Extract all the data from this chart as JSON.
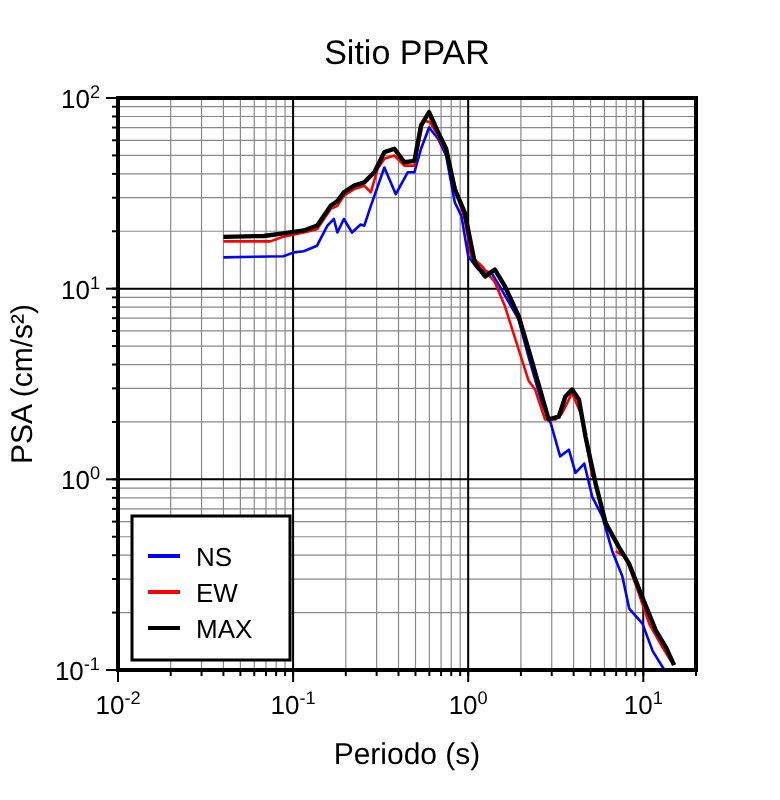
{
  "chart_data": {
    "type": "line",
    "title": "Sitio PPAR",
    "xlabel": "Periodo (s)",
    "ylabel": "PSA (cm/s²)",
    "log": "xy",
    "grid": true,
    "legend": "bottom left",
    "marker": "none",
    "line_style": "solid",
    "xlim": [
      0.01,
      20
    ],
    "ylim": [
      0.1,
      100
    ],
    "xticks": [
      {
        "value": 0.01,
        "label": "10$^{-2}$"
      },
      {
        "value": 0.1,
        "label": "10$^{-1}$"
      },
      {
        "value": 1,
        "label": "10$^{0}$"
      },
      {
        "value": 10,
        "label": "10$^{1}$"
      }
    ],
    "yticks": [
      {
        "value": 0.1,
        "label": "10$^{-1}$"
      },
      {
        "value": 1,
        "label": "10$^{0}$"
      },
      {
        "value": 10,
        "label": "10$^{1}$"
      },
      {
        "value": 100,
        "label": "10$^{2}$"
      }
    ],
    "series": [
      {
        "name": "NS",
        "color": "#0000ff",
        "x": [
          0.04,
          0.088,
          0.101,
          0.115,
          0.137,
          0.157,
          0.171,
          0.179,
          0.195,
          0.217,
          0.243,
          0.255,
          0.278,
          0.332,
          0.386,
          0.452,
          0.493,
          0.538,
          0.598,
          0.673,
          0.748,
          0.838,
          0.914,
          1.0,
          1.14,
          1.36,
          1.55,
          1.94,
          2.21,
          2.64,
          2.96,
          3.35,
          3.76,
          4.1,
          4.6,
          5.11,
          5.83,
          6.65,
          7.59,
          8.31,
          9.89,
          11.3,
          13.2
        ],
        "values": [
          14.6,
          14.8,
          15.5,
          15.7,
          16.8,
          21.4,
          23.2,
          19.7,
          23.2,
          19.7,
          21.7,
          21.4,
          27.2,
          43.2,
          31.3,
          40.8,
          40.8,
          54.2,
          70,
          61.1,
          49.9,
          28.4,
          24.1,
          14.8,
          12.6,
          12.1,
          9.9,
          6.9,
          4.4,
          2.5,
          1.97,
          1.32,
          1.43,
          1.08,
          1.21,
          0.81,
          0.64,
          0.42,
          0.31,
          0.21,
          0.175,
          0.126,
          0.1
        ]
      },
      {
        "name": "EW",
        "color": "#ff0000",
        "x": [
          0.04,
          0.074,
          0.088,
          0.115,
          0.137,
          0.164,
          0.179,
          0.195,
          0.223,
          0.255,
          0.278,
          0.304,
          0.332,
          0.379,
          0.432,
          0.493,
          0.553,
          0.605,
          0.673,
          0.748,
          0.838,
          0.955,
          1.04,
          1.19,
          1.42,
          1.62,
          1.94,
          2.21,
          2.41,
          2.75,
          3.15,
          3.44,
          3.92,
          4.48,
          5.11,
          5.83,
          6.96,
          7.94,
          9.06,
          10.8,
          12.9,
          14.7
        ],
        "values": [
          17.7,
          17.7,
          18.7,
          19.7,
          20.5,
          26.2,
          27.2,
          30.7,
          33.3,
          34.7,
          32.0,
          42.5,
          48,
          49.9,
          44.2,
          44.2,
          76,
          74.8,
          63.5,
          52,
          34.7,
          23.2,
          14.8,
          13.2,
          10.8,
          8.1,
          4.8,
          3.3,
          2.96,
          2.06,
          2.06,
          2.22,
          2.84,
          2.13,
          1.03,
          null,
          0.42,
          0.39,
          0.28,
          0.175,
          0.131,
          0.108
        ]
      },
      {
        "name": "MAX",
        "color": "#000000",
        "x": [
          0.04,
          0.068,
          0.088,
          0.115,
          0.137,
          0.164,
          0.179,
          0.195,
          0.223,
          0.255,
          0.291,
          0.332,
          0.379,
          0.432,
          0.493,
          0.538,
          0.598,
          0.673,
          0.748,
          0.838,
          0.955,
          1.09,
          1.25,
          1.42,
          1.62,
          1.94,
          2.21,
          2.64,
          2.88,
          3.29,
          3.59,
          3.92,
          4.29,
          4.68,
          5.34,
          6.1,
          7.27,
          8.31,
          9.89,
          11.8,
          13.5,
          15.0
        ],
        "values": [
          18.7,
          18.9,
          19.5,
          20.2,
          21.4,
          27.2,
          28.8,
          32.0,
          34.7,
          36.1,
          40.8,
          52,
          54.2,
          46,
          46.8,
          71.8,
          84.3,
          66.2,
          54.2,
          33.3,
          25.1,
          13.7,
          11.6,
          12.6,
          10.3,
          7.2,
          4.8,
          2.72,
          2.06,
          2.13,
          2.72,
          2.96,
          2.62,
          1.67,
          0.95,
          0.59,
          0.44,
          0.36,
          0.24,
          0.161,
          0.131,
          0.106
        ]
      }
    ]
  }
}
